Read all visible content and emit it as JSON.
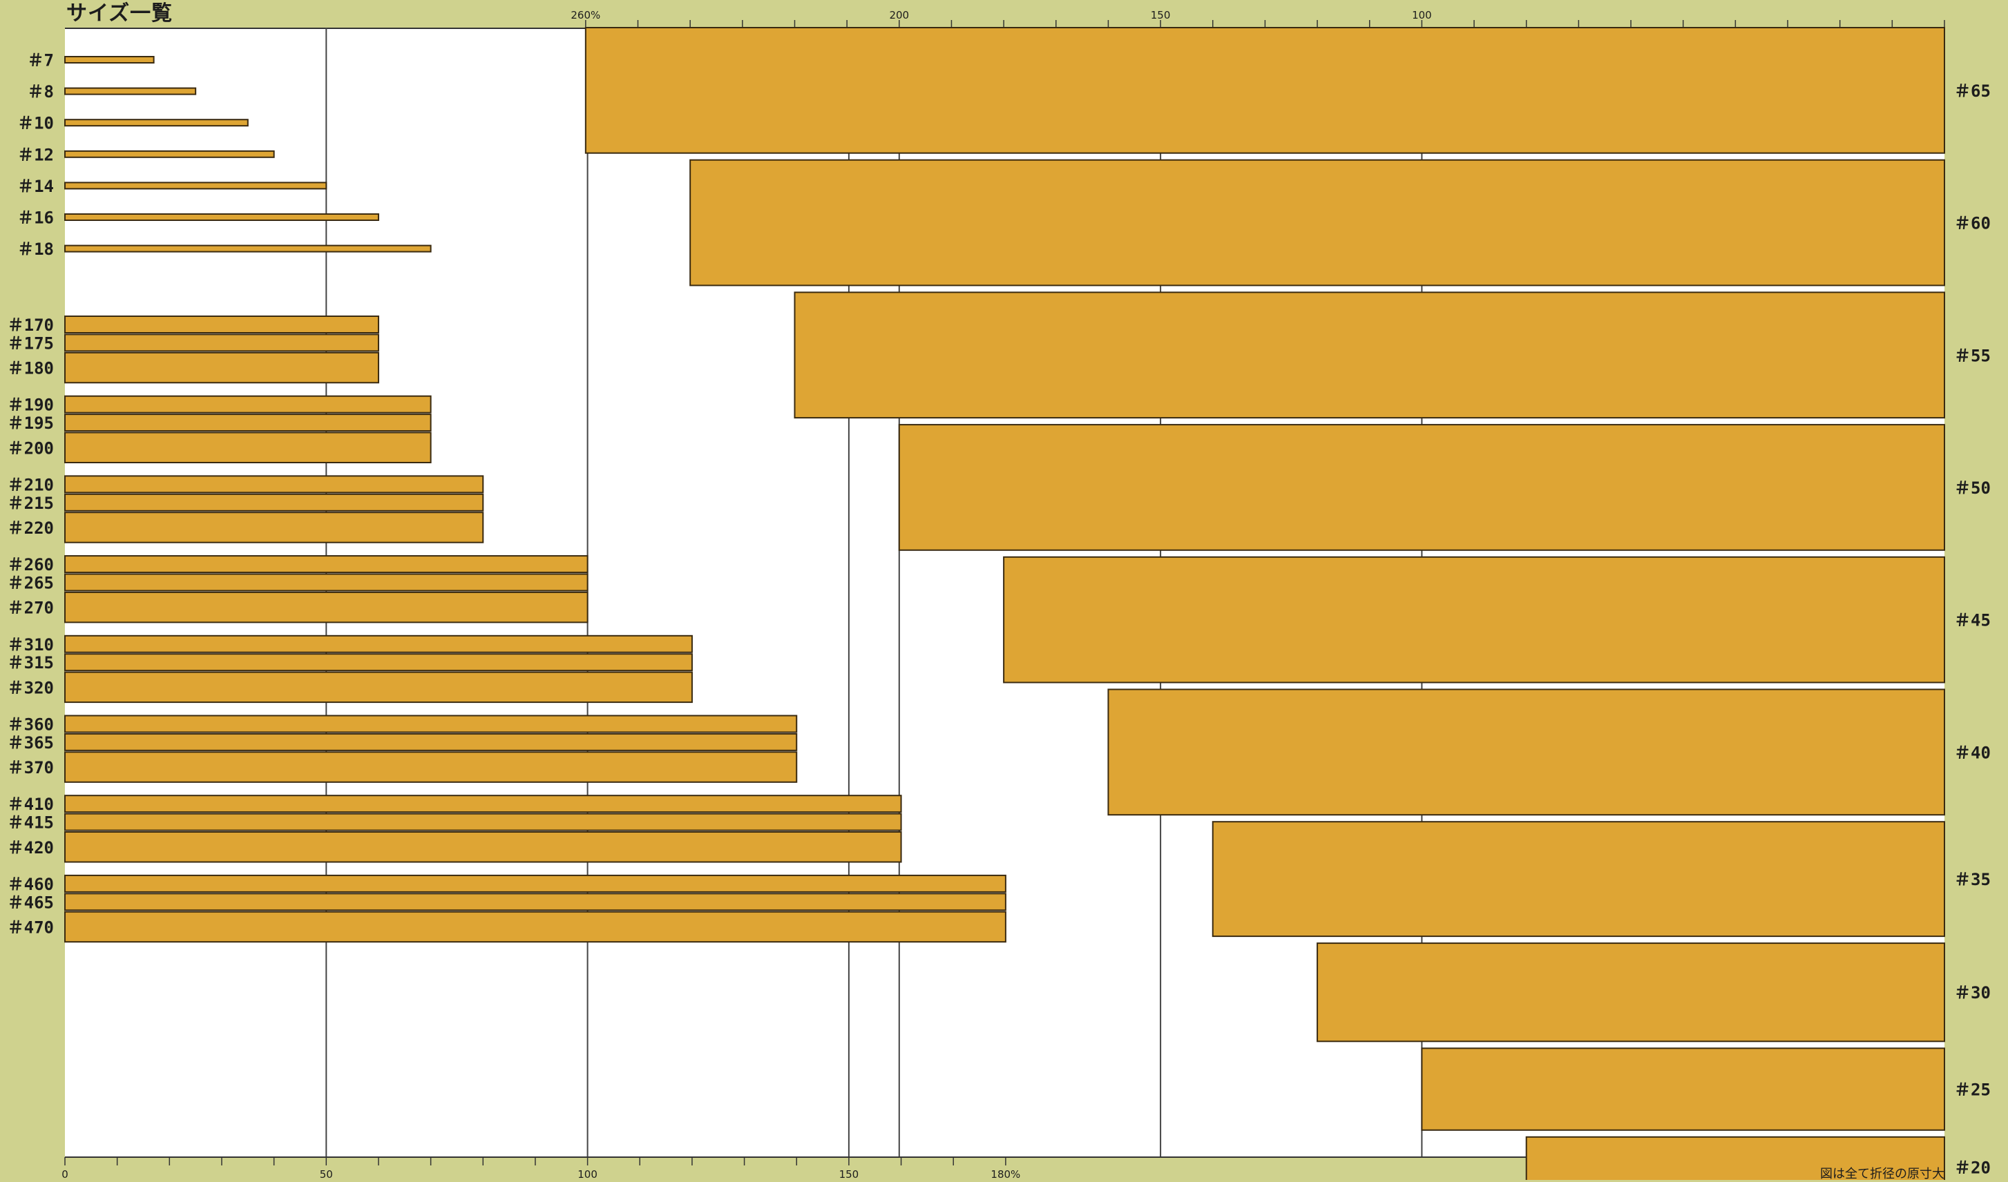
{
  "title": "サイズ一覧",
  "note": "図は全て折径の原寸大",
  "colors": {
    "bar": "#dea534",
    "bar_stroke": "#3a2a10",
    "background": "#cfd28e",
    "plot": "#ffffff"
  },
  "chart_data": [
    {
      "type": "bar",
      "orientation": "horizontal",
      "direction": "left-to-right",
      "xlim": [
        0,
        180
      ],
      "x_ticks": [
        "0",
        "50",
        "100",
        "150",
        "180%"
      ],
      "x_tick_values": [
        0,
        50,
        100,
        150,
        180
      ],
      "grid": true,
      "categories": [
        "＃7",
        "＃8",
        "＃10",
        "＃12",
        "＃14",
        "＃16",
        "＃18",
        "＃170",
        "＃175",
        "＃180",
        "＃190",
        "＃195",
        "＃200",
        "＃210",
        "＃215",
        "＃220",
        "＃260",
        "＃265",
        "＃270",
        "＃310",
        "＃315",
        "＃320",
        "＃360",
        "＃365",
        "＃370",
        "＃410",
        "＃415",
        "＃420",
        "＃460",
        "＃465",
        "＃470"
      ],
      "values": [
        17,
        25,
        35,
        40,
        50,
        60,
        70,
        60,
        60,
        60,
        70,
        70,
        70,
        80,
        80,
        80,
        100,
        100,
        100,
        120,
        120,
        120,
        140,
        140,
        140,
        160,
        160,
        160,
        180,
        180,
        180
      ],
      "thickness": [
        1.2,
        1.2,
        1.2,
        1.2,
        1.2,
        1.2,
        1.2,
        3.2,
        3.2,
        5.8,
        3.2,
        3.2,
        5.8,
        3.2,
        3.2,
        5.8,
        3.2,
        3.2,
        5.8,
        3.2,
        3.2,
        5.8,
        3.2,
        3.2,
        5.8,
        3.2,
        3.2,
        5.8,
        3.2,
        3.2,
        5.8
      ]
    },
    {
      "type": "bar",
      "orientation": "horizontal",
      "direction": "right-to-left",
      "xlim": [
        0,
        260
      ],
      "x_ticks": [
        "260%",
        "200",
        "150",
        "100"
      ],
      "x_tick_values": [
        260,
        200,
        150,
        100
      ],
      "grid": true,
      "categories": [
        "＃65",
        "＃60",
        "＃55",
        "＃50",
        "＃45",
        "＃40",
        "＃35",
        "＃30",
        "＃25",
        "＃20"
      ],
      "values": [
        260,
        240,
        220,
        200,
        180,
        160,
        140,
        120,
        100,
        80
      ],
      "thickness": [
        23,
        23,
        23,
        23,
        23,
        23,
        21,
        18,
        15,
        11
      ]
    }
  ]
}
